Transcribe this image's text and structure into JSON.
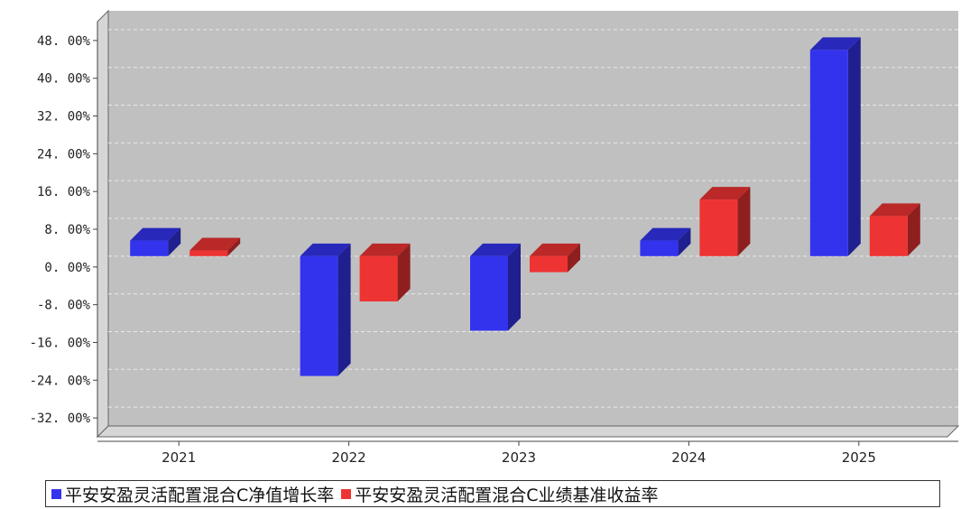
{
  "chart_data": {
    "type": "bar",
    "categories": [
      "2021",
      "2022",
      "2023",
      "2024",
      "2025"
    ],
    "series": [
      {
        "name": "平安安盈灵活配置混合C净值增长率",
        "color": "#3333ee",
        "values": [
          3.3,
          -25.4,
          -15.8,
          3.3,
          43.7
        ]
      },
      {
        "name": "平安安盈灵活配置混合C业绩基准收益率",
        "color": "#ee3333",
        "values": [
          1.2,
          -9.6,
          -3.4,
          12.0,
          8.5
        ]
      }
    ],
    "yticks": [
      "48. 00%",
      "40. 00%",
      "32. 00%",
      "24. 00%",
      "16. 00%",
      "8. 00%",
      "0. 00%",
      "-8. 00%",
      "-16. 00%",
      "-24. 00%",
      "-32. 00%"
    ],
    "ylim": [
      -36,
      52
    ],
    "grid": true,
    "legend_position": "bottom"
  }
}
